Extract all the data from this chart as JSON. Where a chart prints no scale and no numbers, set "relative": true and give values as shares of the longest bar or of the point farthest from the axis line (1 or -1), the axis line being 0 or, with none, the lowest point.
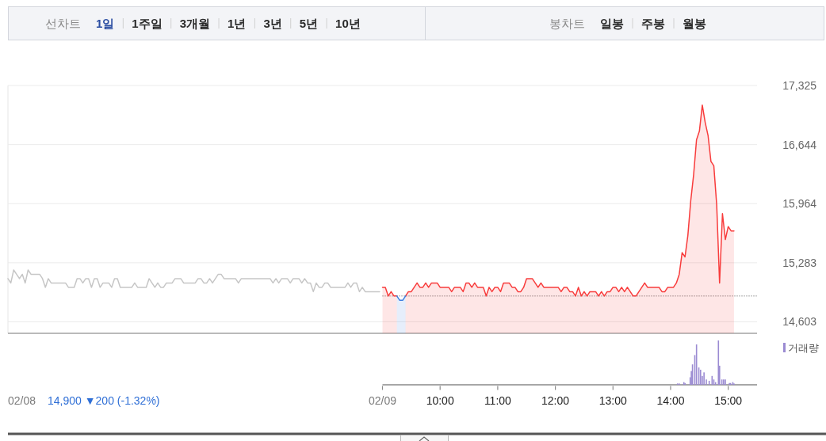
{
  "chart_data": [
    {
      "type": "line",
      "annotations": [
        "선차트",
        "1일",
        "1주일",
        "3개월",
        "1년",
        "3년",
        "5년",
        "10년",
        "봉차트",
        "일봉",
        "주봉",
        "월봉",
        "02/08",
        "14,900 ▼200 (-1.32%)"
      ],
      "categories": [
        null,
        null,
        null,
        null,
        null,
        null,
        null,
        null,
        null,
        null,
        null,
        null,
        null,
        null,
        null,
        null,
        null,
        null,
        null,
        null,
        null,
        null,
        null,
        null,
        null,
        null,
        null,
        null,
        null,
        null,
        null,
        null,
        null,
        null,
        null,
        null,
        null,
        null,
        null,
        null,
        null,
        null,
        null,
        null,
        null,
        null,
        null,
        null,
        null,
        null,
        null,
        null,
        null,
        null,
        null,
        null,
        null,
        null,
        null,
        null,
        null,
        null,
        null,
        null,
        null,
        null,
        null,
        null,
        null,
        null,
        null,
        null,
        null,
        null,
        null,
        null,
        null,
        null,
        null,
        null,
        null,
        null,
        null,
        null,
        null,
        null,
        null,
        null,
        null,
        null,
        null,
        null,
        null,
        null,
        null,
        null,
        null,
        null,
        null,
        null,
        null,
        null,
        null,
        null,
        null,
        null,
        null,
        null,
        null,
        null,
        null,
        null,
        null,
        null,
        null,
        null,
        null,
        null,
        null,
        null,
        null,
        null,
        null,
        null,
        null,
        null,
        null,
        null,
        null,
        null,
        null,
        null,
        null,
        null,
        null,
        null,
        null,
        null,
        null,
        null,
        null,
        null,
        null,
        null,
        null,
        null,
        null,
        null,
        null,
        null,
        null,
        null,
        null,
        null,
        null,
        null,
        null,
        null,
        null,
        null,
        null,
        null,
        null,
        null,
        null,
        null,
        null,
        null,
        null,
        null,
        null,
        null,
        null,
        null,
        null,
        null,
        null,
        null,
        null,
        null,
        null,
        null,
        null,
        null,
        null,
        null,
        null,
        null,
        null,
        null,
        null,
        null,
        null,
        null,
        null,
        null,
        null,
        null,
        null,
        null,
        null,
        null,
        null,
        null,
        null,
        null,
        null,
        null,
        null,
        null,
        null,
        null,
        null,
        null,
        null,
        null,
        null,
        null,
        null,
        null,
        null,
        null,
        null,
        null,
        null,
        null,
        null,
        null,
        null,
        null,
        null,
        null,
        null,
        null,
        null,
        null,
        null,
        null,
        null,
        null,
        null,
        null,
        null,
        null,
        null,
        null,
        null,
        null,
        null,
        null,
        null,
        null,
        null,
        null,
        null,
        null,
        null,
        null,
        null,
        null,
        null
      ],
      "ylim": [
        14470,
        17325
      ],
      "yticks": [
        {
          "value": 14603,
          "label": "14,603"
        },
        {
          "value": 15283,
          "label": "15,283"
        },
        {
          "value": 15964,
          "label": "15,964"
        },
        {
          "value": 16644,
          "label": "16,644"
        },
        {
          "value": 17325,
          "label": "17,325"
        }
      ],
      "grid": "y",
      "ref_lines": [
        {
          "axis": "y",
          "value": 14900,
          "line_style": "dotted",
          "color": "#555555"
        }
      ],
      "series": [
        {
          "color": "#c6c6c6",
          "values": [
            15100,
            15050,
            15200,
            15150,
            15100,
            15150,
            15050,
            15200,
            15150,
            15150,
            15150,
            15150,
            15100,
            15000,
            15100,
            15050,
            15050,
            15050,
            15050,
            15050,
            15050,
            15000,
            15000,
            15000,
            15100,
            15100,
            15050,
            15100,
            15100,
            15000,
            15100,
            15100,
            15000,
            15050,
            15050,
            15050,
            15000,
            15100,
            15100,
            15000,
            15000,
            15000,
            15000,
            15000,
            15050,
            15000,
            15000,
            15000,
            15000,
            15100,
            15050,
            15000,
            15050,
            15000,
            15000,
            15050,
            15050,
            15050,
            15100,
            15100,
            15100,
            15050,
            15050,
            15050,
            15050,
            15050,
            15100,
            15100,
            15050,
            15050,
            15100,
            15050,
            15100,
            15150,
            15150,
            15100,
            15100,
            15100,
            15100,
            15100,
            15050,
            15100,
            15100,
            15100,
            15100,
            15100,
            15100,
            15100,
            15100,
            15100,
            15100,
            15100,
            15050,
            15100,
            15050,
            15100,
            15100,
            15100,
            15050,
            15100,
            15100,
            15100,
            15050,
            15100,
            15050,
            15050,
            14950,
            15050,
            15000,
            15000,
            15050,
            15050,
            15000,
            15000,
            15000,
            15000,
            15000,
            15000,
            15050,
            15000,
            15050,
            15050,
            14950,
            15000,
            14950,
            14950,
            14950,
            14950,
            14950,
            14950,
            null,
            null,
            null,
            null,
            null,
            null,
            null,
            null,
            null,
            null,
            null,
            null,
            null,
            null,
            null,
            null,
            null,
            null,
            null,
            null,
            null,
            null,
            null,
            null,
            null,
            null,
            null,
            null,
            null,
            null,
            null,
            null,
            null,
            null,
            null,
            null,
            null,
            null,
            null,
            null,
            null,
            null,
            null,
            null,
            null,
            null,
            null,
            null,
            null,
            null,
            null,
            null,
            null,
            null,
            null,
            null,
            null,
            null,
            null,
            null,
            null,
            null,
            null,
            null,
            null,
            null,
            null,
            null,
            null,
            null,
            null,
            null,
            null,
            null,
            null,
            null,
            null,
            null,
            null,
            null,
            null,
            null,
            null,
            null,
            null,
            null,
            null,
            null,
            null,
            null,
            null,
            null,
            null,
            null,
            null,
            null,
            null,
            null,
            null,
            null,
            null,
            null,
            null,
            null,
            null,
            null,
            null,
            null,
            null,
            null,
            null,
            null,
            null,
            null,
            null,
            null,
            null,
            null,
            null,
            null,
            null,
            null,
            null,
            null,
            null,
            null,
            null,
            null,
            null,
            null,
            null
          ]
        },
        {
          "type": "area",
          "color": "#f83c3c",
          "values": [
            null,
            null,
            null,
            null,
            null,
            null,
            null,
            null,
            null,
            null,
            null,
            null,
            null,
            null,
            null,
            null,
            null,
            null,
            null,
            null,
            null,
            null,
            null,
            null,
            null,
            null,
            null,
            null,
            null,
            null,
            null,
            null,
            null,
            null,
            null,
            null,
            null,
            null,
            null,
            null,
            null,
            null,
            null,
            null,
            null,
            null,
            null,
            null,
            null,
            null,
            null,
            null,
            null,
            null,
            null,
            null,
            null,
            null,
            null,
            null,
            null,
            null,
            null,
            null,
            null,
            null,
            null,
            null,
            null,
            null,
            null,
            null,
            null,
            null,
            null,
            null,
            null,
            null,
            null,
            null,
            null,
            null,
            null,
            null,
            null,
            null,
            null,
            null,
            null,
            null,
            null,
            null,
            null,
            null,
            null,
            null,
            null,
            null,
            null,
            null,
            null,
            null,
            null,
            null,
            null,
            null,
            null,
            null,
            null,
            null,
            null,
            null,
            null,
            null,
            null,
            null,
            null,
            null,
            null,
            null,
            null,
            null,
            null,
            null,
            null,
            null,
            null,
            null,
            null,
            null,
            15000,
            15000,
            14900,
            14950,
            14900,
            14900,
            null,
            null,
            14900,
            14950,
            14950,
            15000,
            15050,
            15000,
            15000,
            15050,
            15000,
            15050,
            15050,
            15050,
            15000,
            15000,
            15000,
            15000,
            14950,
            15000,
            15000,
            15000,
            14950,
            15050,
            15050,
            15000,
            15050,
            15000,
            15000,
            15000,
            14900,
            15000,
            14950,
            15000,
            15000,
            14950,
            15050,
            15050,
            15050,
            15000,
            15000,
            14950,
            14950,
            15000,
            15100,
            15100,
            15100,
            15050,
            15000,
            15050,
            15000,
            15000,
            15000,
            15000,
            15000,
            15000,
            14950,
            15000,
            15000,
            14950,
            14950,
            14900,
            15000,
            14900,
            14950,
            14900,
            14950,
            14950,
            14950,
            14900,
            14950,
            14900,
            14950,
            14950,
            15000,
            15000,
            14950,
            15000,
            14950,
            15000,
            14950,
            14900,
            14900,
            14950,
            15000,
            15050,
            15000,
            15000,
            15000,
            15000,
            15000,
            14950,
            14950,
            15000,
            15000,
            15000,
            15050,
            15150,
            15400,
            15350,
            15600,
            16000,
            16300,
            16700,
            16800,
            17100,
            16900,
            16750,
            16450,
            16400,
            15950,
            15050,
            15850,
            15550,
            15700,
            15650,
            15650,
            null,
            null,
            null,
            null,
            null,
            null,
            null,
            null
          ]
        },
        {
          "type": "area",
          "color": "#3c7ee0",
          "values": [
            null,
            null,
            null,
            null,
            null,
            null,
            null,
            null,
            null,
            null,
            null,
            null,
            null,
            null,
            null,
            null,
            null,
            null,
            null,
            null,
            null,
            null,
            null,
            null,
            null,
            null,
            null,
            null,
            null,
            null,
            null,
            null,
            null,
            null,
            null,
            null,
            null,
            null,
            null,
            null,
            null,
            null,
            null,
            null,
            null,
            null,
            null,
            null,
            null,
            null,
            null,
            null,
            null,
            null,
            null,
            null,
            null,
            null,
            null,
            null,
            null,
            null,
            null,
            null,
            null,
            null,
            null,
            null,
            null,
            null,
            null,
            null,
            null,
            null,
            null,
            null,
            null,
            null,
            null,
            null,
            null,
            null,
            null,
            null,
            null,
            null,
            null,
            null,
            null,
            null,
            null,
            null,
            null,
            null,
            null,
            null,
            null,
            null,
            null,
            null,
            null,
            null,
            null,
            null,
            null,
            null,
            null,
            null,
            null,
            null,
            null,
            null,
            null,
            null,
            null,
            null,
            null,
            null,
            null,
            null,
            null,
            null,
            null,
            null,
            null,
            null,
            null,
            null,
            null,
            null,
            null,
            null,
            null,
            null,
            null,
            14900,
            14850,
            14850,
            14900,
            null,
            null,
            null,
            null,
            null,
            null,
            null,
            null,
            null,
            null,
            null,
            null,
            null,
            null,
            null,
            null,
            null,
            null,
            null,
            null,
            null,
            null,
            null,
            null,
            null,
            null,
            null,
            null,
            null,
            null,
            null,
            null,
            null,
            null,
            null,
            null,
            null,
            null,
            null,
            null,
            null,
            null,
            null,
            null,
            null,
            null,
            null,
            null,
            null,
            null,
            null,
            null,
            null,
            null,
            null,
            null,
            null,
            null,
            null,
            null,
            null,
            null,
            null,
            null,
            null,
            null,
            null,
            null,
            null,
            null,
            null,
            null,
            null,
            null,
            null,
            null,
            null,
            null,
            null,
            null,
            null,
            null,
            null,
            null,
            null,
            null,
            null,
            null,
            null,
            null,
            null,
            null,
            null,
            null,
            null,
            null,
            null,
            null,
            null,
            null,
            null,
            null,
            null,
            null,
            null,
            null,
            null,
            null,
            null,
            null,
            null,
            null,
            null,
            null,
            null,
            null,
            null,
            null,
            null,
            null,
            null,
            null
          ]
        }
      ]
    },
    {
      "type": "bar",
      "relative": true,
      "xlim": [
        9,
        15.5
      ],
      "xticks": [
        {
          "value": 9,
          "label": "02/09"
        },
        {
          "value": 10,
          "label": "10:00"
        },
        {
          "value": 11,
          "label": "11:00"
        },
        {
          "value": 12,
          "label": "12:00"
        },
        {
          "value": 13,
          "label": "13:00"
        },
        {
          "value": 14,
          "label": "14:00"
        },
        {
          "value": 15,
          "label": "15:00"
        }
      ],
      "legend": "top right",
      "series": [
        {
          "name": "거래량",
          "color": "#9b8bd2",
          "x": [
            14.12,
            14.15,
            14.23,
            14.25,
            14.34,
            14.36,
            14.38,
            14.42,
            14.45,
            14.49,
            14.52,
            14.55,
            14.58,
            14.62,
            14.67,
            14.72,
            14.75,
            14.78,
            14.83,
            14.85,
            14.89,
            14.92,
            14.95,
            15.02,
            15.04,
            15.08,
            15.1
          ],
          "values": [
            0.03,
            0.03,
            0.06,
            0.04,
            0.17,
            0.31,
            0.46,
            0.67,
            0.91,
            0.39,
            0.34,
            0.2,
            0.28,
            0.12,
            0.09,
            0.2,
            0.12,
            0.06,
            1,
            0.43,
            0.12,
            0.12,
            0.12,
            0.04,
            0.04,
            0.06,
            0.03
          ]
        }
      ]
    }
  ]
}
